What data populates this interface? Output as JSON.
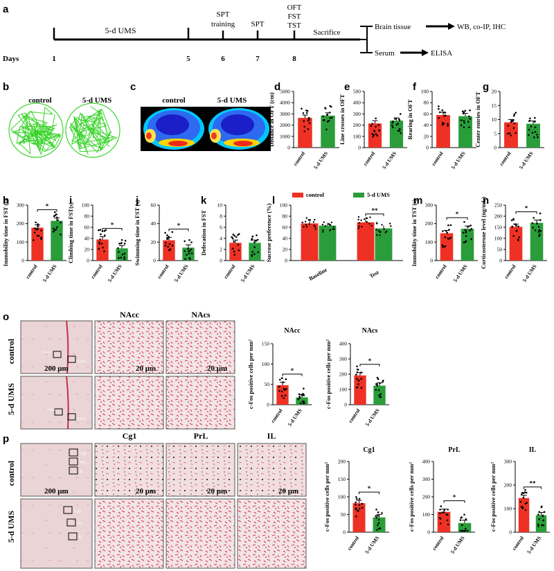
{
  "colors": {
    "control": "#ee3124",
    "ums": "#2a9d3a",
    "track": "#39d42a",
    "axis": "#000000"
  },
  "panel_letters": [
    "a",
    "b",
    "c",
    "d",
    "e",
    "f",
    "g",
    "h",
    "i",
    "j",
    "k",
    "l",
    "m",
    "n",
    "o",
    "p"
  ],
  "timeline": {
    "days_label": "Days",
    "segment_label": "5-d UMS",
    "days": [
      "1",
      "5",
      "6",
      "7",
      "8"
    ],
    "events": {
      "spt_training": [
        "SPT",
        "training"
      ],
      "spt": "SPT",
      "tests": [
        "OFT",
        "FST",
        "TST"
      ],
      "sacrifice": "Sacrifice"
    },
    "brain": "Brain tissue",
    "brain_out": "WB, co-IP, IHC",
    "serum": "Serum",
    "serum_out": "ELISA"
  },
  "groups": [
    "control",
    "5-d UMS"
  ],
  "micro": {
    "o_cols": [
      "NAcc",
      "NAcs"
    ],
    "p_cols": [
      "Cg1",
      "PrL",
      "IL"
    ],
    "o_roi": [
      "NAcc",
      "NAcs"
    ],
    "p_roi": [
      "Cg1",
      "PrL",
      "IL"
    ],
    "scale_large": "200 μm",
    "scale_small": "20 μm"
  },
  "chart_data": [
    {
      "panel": "d",
      "type": "bar",
      "categories": [
        "control",
        "5-d UMS"
      ],
      "values": [
        2650,
        2850
      ],
      "ylabel": "Distance in OFT (cm)",
      "ylim": [
        0,
        5000
      ],
      "yticks": [
        "0",
        "1000",
        "2000",
        "3000",
        "4000",
        "5000"
      ],
      "significance": ""
    },
    {
      "panel": "e",
      "type": "bar",
      "categories": [
        "control",
        "5-d UMS"
      ],
      "values": [
        215,
        240
      ],
      "ylabel": "Line crosses in OFT",
      "ylim": [
        0,
        500
      ],
      "yticks": [
        "0",
        "100",
        "200",
        "300",
        "400",
        "500"
      ],
      "significance": ""
    },
    {
      "panel": "f",
      "type": "bar",
      "categories": [
        "control",
        "5-d UMS"
      ],
      "values": [
        58,
        56
      ],
      "ylabel": "Rearing in OFT",
      "ylim": [
        0,
        100
      ],
      "yticks": [
        "0",
        "20",
        "40",
        "60",
        "80",
        "100"
      ],
      "significance": ""
    },
    {
      "panel": "g",
      "type": "bar",
      "categories": [
        "control",
        "5-d UMS"
      ],
      "values": [
        9,
        8.5
      ],
      "ylabel": "Center entries in OFT",
      "ylim": [
        0,
        20
      ],
      "yticks": [
        "0",
        "5",
        "10",
        "15",
        "20"
      ],
      "significance": ""
    },
    {
      "panel": "h",
      "type": "bar",
      "categories": [
        "control",
        "5-d UMS"
      ],
      "values": [
        178,
        215
      ],
      "ylabel": "Immobility time in FST (s)",
      "ylim": [
        0,
        300
      ],
      "yticks": [
        "0",
        "100",
        "200",
        "300"
      ],
      "significance": "*"
    },
    {
      "panel": "i",
      "type": "bar",
      "categories": [
        "control",
        "5-d UMS"
      ],
      "values": [
        38,
        22
      ],
      "ylabel": "Climbing time in FST(s)",
      "ylim": [
        0,
        100
      ],
      "yticks": [
        "0",
        "20",
        "40",
        "60",
        "80",
        "100"
      ],
      "significance": "*"
    },
    {
      "panel": "j",
      "type": "bar",
      "categories": [
        "control",
        "5-d UMS"
      ],
      "values": [
        22,
        14
      ],
      "ylabel": "Swimming time in FST (s)",
      "ylim": [
        0,
        60
      ],
      "yticks": [
        "0",
        "20",
        "40",
        "60"
      ],
      "significance": "*"
    },
    {
      "panel": "k",
      "type": "bar",
      "categories": [
        "control",
        "5-d UMS"
      ],
      "values": [
        3.2,
        3.2
      ],
      "ylabel": "Defecation in FST",
      "ylim": [
        0,
        10
      ],
      "yticks": [
        "0",
        "2",
        "4",
        "6",
        "8",
        "10"
      ],
      "significance": ""
    },
    {
      "panel": "l",
      "type": "bar",
      "categories": [
        "Baseline",
        "Test"
      ],
      "series": [
        {
          "name": "control",
          "values": [
            67,
            69
          ]
        },
        {
          "name": "5-d UMS",
          "values": [
            63,
            58
          ]
        }
      ],
      "ylabel": "Sucrose preference (%)",
      "ylim": [
        0,
        100
      ],
      "yticks": [
        "0",
        "20",
        "40",
        "60",
        "80",
        "100"
      ],
      "legend": "top",
      "significance": "**"
    },
    {
      "panel": "m",
      "type": "bar",
      "categories": [
        "control",
        "5-d UMS"
      ],
      "values": [
        148,
        172
      ],
      "ylabel": "Immobility time in TST (s)",
      "ylim": [
        0,
        300
      ],
      "yticks": [
        "0",
        "100",
        "200",
        "300"
      ],
      "significance": "*"
    },
    {
      "panel": "n",
      "type": "bar",
      "categories": [
        "control",
        "5-d UMS"
      ],
      "values": [
        152,
        170
      ],
      "ylabel": "Corticosterone level (ng/mL)",
      "ylim": [
        0,
        250
      ],
      "yticks": [
        "0",
        "50",
        "100",
        "150",
        "200",
        "250"
      ],
      "significance": "*"
    },
    {
      "panel": "o1",
      "type": "bar",
      "title": "NAcc",
      "categories": [
        "control",
        "5-d UMS"
      ],
      "values": [
        48,
        18
      ],
      "ylabel": "c-Fos positive cells per mm²",
      "ylim": [
        0,
        150
      ],
      "yticks": [
        "0",
        "50",
        "100",
        "150"
      ],
      "significance": "*"
    },
    {
      "panel": "o2",
      "type": "bar",
      "title": "NAcs",
      "categories": [
        "control",
        "5-d UMS"
      ],
      "values": [
        192,
        125
      ],
      "ylabel": "c-Fos positive cells per mm²",
      "ylim": [
        0,
        400
      ],
      "yticks": [
        "0",
        "100",
        "200",
        "300",
        "400"
      ],
      "significance": "*"
    },
    {
      "panel": "p1",
      "type": "bar",
      "title": "Cg1",
      "categories": [
        "control",
        "5-d UMS"
      ],
      "values": [
        82,
        42
      ],
      "ylabel": "c-Fos positive cells per mm²",
      "ylim": [
        0,
        200
      ],
      "yticks": [
        "0",
        "50",
        "100",
        "150",
        "200"
      ],
      "significance": "*"
    },
    {
      "panel": "p2",
      "type": "bar",
      "title": "PrL",
      "categories": [
        "control",
        "5-d UMS"
      ],
      "values": [
        115,
        52
      ],
      "ylabel": "c-Fos positive cells per mm²",
      "ylim": [
        0,
        400
      ],
      "yticks": [
        "0",
        "100",
        "200",
        "300",
        "400"
      ],
      "significance": "*"
    },
    {
      "panel": "p3",
      "type": "bar",
      "title": "IL",
      "categories": [
        "control",
        "5-d UMS"
      ],
      "values": [
        145,
        72
      ],
      "ylabel": "c-Fos positive cells per mm²",
      "ylim": [
        0,
        300
      ],
      "yticks": [
        "0",
        "100",
        "200",
        "300"
      ],
      "significance": "**"
    }
  ]
}
